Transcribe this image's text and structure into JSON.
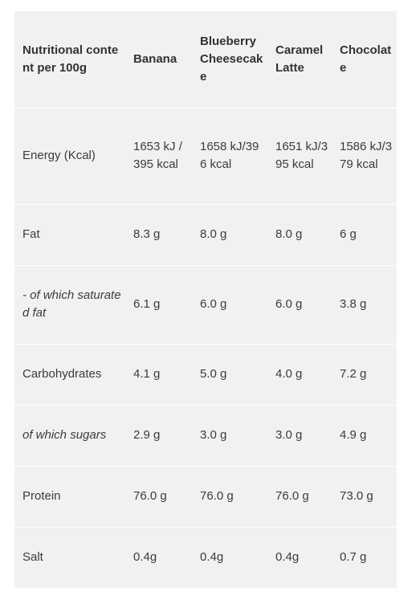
{
  "table": {
    "headers": [
      "Nutritional content per 100g",
      "Banana",
      "Blueberry Cheesecake",
      "Caramel Latte",
      "Chocolate"
    ],
    "rows": [
      {
        "label": "Energy (Kcal)",
        "values": [
          "1653 kJ / 395 kcal",
          "1658 kJ/396 kcal",
          "1651 kJ/395 kcal",
          "1586 kJ/379 kcal"
        ]
      },
      {
        "label": "Fat",
        "values": [
          "8.3 g",
          "8.0 g",
          "8.0 g",
          "6 g"
        ]
      },
      {
        "label": "- of which saturated fat",
        "values": [
          "6.1 g",
          "6.0 g",
          "6.0 g",
          "3.8 g"
        ]
      },
      {
        "label": "Carbohydrates",
        "values": [
          "4.1 g",
          "5.0 g",
          "4.0 g",
          "7.2 g"
        ]
      },
      {
        "label": "of which sugars",
        "values": [
          "2.9 g",
          "3.0 g",
          "3.0 g",
          "4.9 g"
        ]
      },
      {
        "label": "Protein",
        "values": [
          "76.0 g",
          "76.0 g",
          "76.0 g",
          "73.0 g"
        ]
      },
      {
        "label": "Salt",
        "values": [
          "0.4g",
          "0.4g",
          "0.4g",
          "0.7 g"
        ]
      }
    ]
  }
}
